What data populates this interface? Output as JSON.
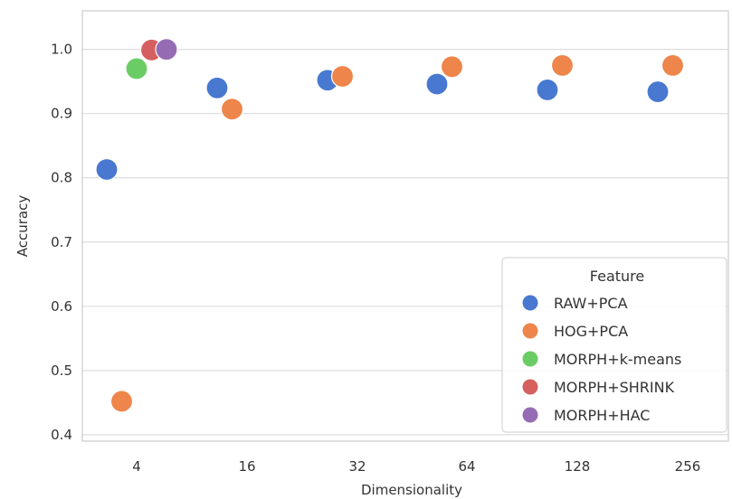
{
  "chart_data": {
    "type": "scatter",
    "xlabel": "Dimensionality",
    "ylabel": "Accuracy",
    "categories": [
      "4",
      "16",
      "32",
      "64",
      "128",
      "256"
    ],
    "ylim": [
      0.39,
      1.06
    ],
    "yticks": [
      "0.4",
      "0.5",
      "0.6",
      "0.7",
      "0.8",
      "0.9",
      "1.0"
    ],
    "grid": true,
    "legend": {
      "title": "Feature",
      "placement": "lower-right"
    },
    "series": [
      {
        "name": "RAW+PCA",
        "color": "#4878d0",
        "points": [
          {
            "x": "4",
            "y": 0.813
          },
          {
            "x": "16",
            "y": 0.94
          },
          {
            "x": "32",
            "y": 0.952
          },
          {
            "x": "64",
            "y": 0.946
          },
          {
            "x": "128",
            "y": 0.937
          },
          {
            "x": "256",
            "y": 0.934
          }
        ]
      },
      {
        "name": "HOG+PCA",
        "color": "#ee854a",
        "points": [
          {
            "x": "4",
            "y": 0.452
          },
          {
            "x": "16",
            "y": 0.907
          },
          {
            "x": "32",
            "y": 0.958
          },
          {
            "x": "64",
            "y": 0.973
          },
          {
            "x": "128",
            "y": 0.975
          },
          {
            "x": "256",
            "y": 0.975
          }
        ]
      },
      {
        "name": "MORPH+k-means",
        "color": "#6acc64",
        "points": [
          {
            "x": "4",
            "y": 0.97
          }
        ]
      },
      {
        "name": "MORPH+SHRINK",
        "color": "#d65f5f",
        "points": [
          {
            "x": "4",
            "y": 0.999
          }
        ]
      },
      {
        "name": "MORPH+HAC",
        "color": "#956cb4",
        "points": [
          {
            "x": "4",
            "y": 1.0
          }
        ]
      }
    ]
  }
}
